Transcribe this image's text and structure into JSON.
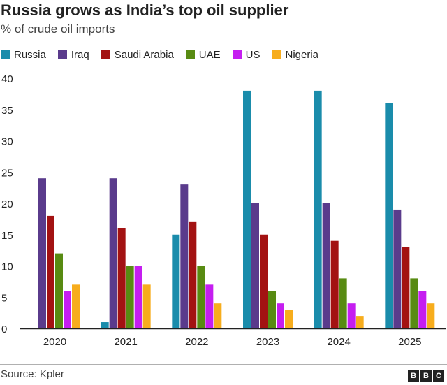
{
  "header": {
    "title": "Russia grows as India’s top oil supplier",
    "subtitle": "% of crude oil imports"
  },
  "colors": {
    "Russia": "#1a8cab",
    "Iraq": "#5a3b8c",
    "Saudi Arabia": "#a31212",
    "UAE": "#588b12",
    "US": "#c51ef0",
    "Nigeria": "#f7ad1d",
    "axis": "#222222",
    "gridline": "#dddddd"
  },
  "chart_data": {
    "type": "bar",
    "title": "Russia grows as India’s top oil supplier",
    "subtitle": "% of crude oil imports",
    "xlabel": "",
    "ylabel": "% of crude oil imports",
    "categories": [
      "2020",
      "2021",
      "2022",
      "2023",
      "2024",
      "2025"
    ],
    "series": [
      {
        "name": "Russia",
        "values": [
          0,
          1,
          15,
          38,
          38,
          36
        ]
      },
      {
        "name": "Iraq",
        "values": [
          24,
          24,
          23,
          20,
          20,
          19
        ]
      },
      {
        "name": "Saudi Arabia",
        "values": [
          18,
          16,
          17,
          15,
          14,
          13
        ]
      },
      {
        "name": "UAE",
        "values": [
          12,
          10,
          10,
          6,
          8,
          8
        ]
      },
      {
        "name": "US",
        "values": [
          6,
          10,
          7,
          4,
          4,
          6
        ]
      },
      {
        "name": "Nigeria",
        "values": [
          7,
          7,
          4,
          3,
          2,
          4
        ]
      }
    ],
    "ylim": [
      0,
      40
    ],
    "yticks": [
      "0",
      "5",
      "10",
      "15",
      "20",
      "25",
      "30",
      "35",
      "40"
    ],
    "grid": false,
    "legend_position": "top-left"
  },
  "footer": {
    "source": "Source: Kpler",
    "logo_letters": [
      "B",
      "B",
      "C"
    ]
  }
}
